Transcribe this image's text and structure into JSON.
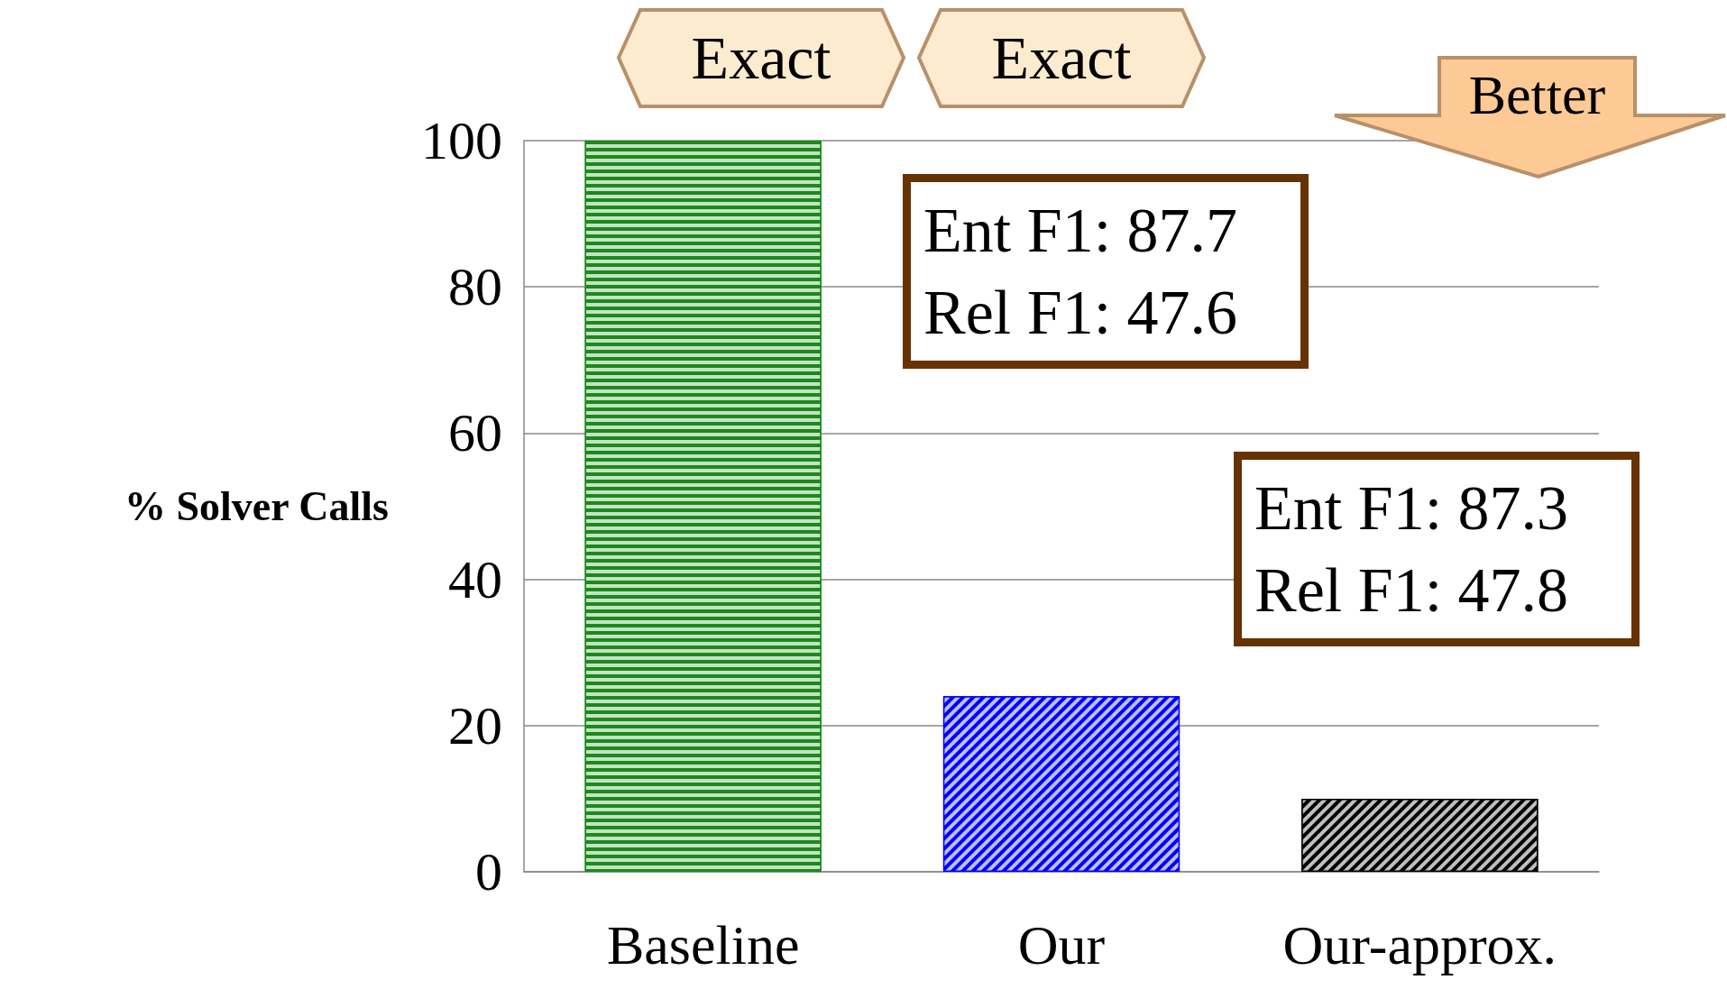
{
  "chart_data": {
    "type": "bar",
    "ylabel": "% Solver Calls",
    "categories": [
      "Baseline",
      "Our",
      "Our-approx."
    ],
    "values": [
      100,
      24,
      10
    ],
    "colors": [
      "#1a8a1a",
      "#0000ff",
      "#000000"
    ],
    "ylim": [
      0,
      100
    ],
    "yticks": [
      0,
      20,
      40,
      60,
      80,
      100
    ],
    "grid": "y",
    "annotations": [
      "Exact",
      "Exact",
      "Better",
      "Ent F1: 87.7\nRel F1: 47.6",
      "Ent F1: 87.3\nRel F1: 47.8"
    ]
  }
}
